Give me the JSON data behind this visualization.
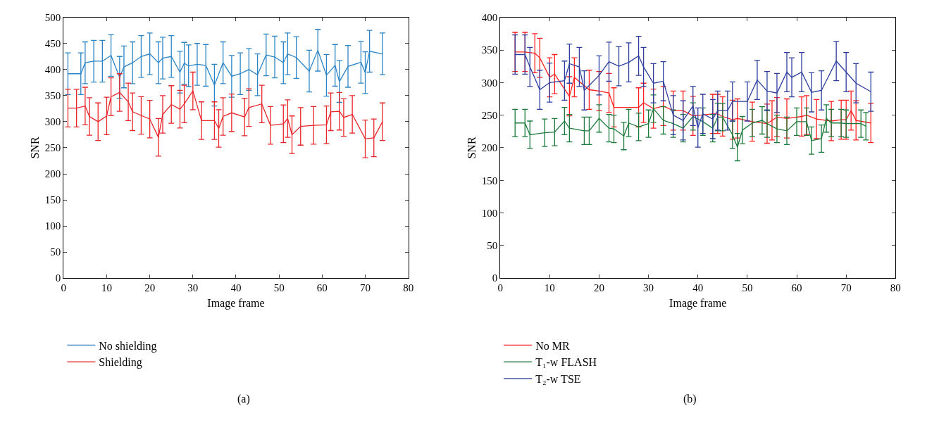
{
  "chart_data": [
    {
      "type": "line",
      "title": "(a)",
      "xlabel": "Image frame",
      "ylabel": "SNR",
      "xlim": [
        0,
        80
      ],
      "xticks": [
        0,
        10,
        20,
        30,
        40,
        50,
        60,
        70,
        80
      ],
      "ylim": [
        0,
        500
      ],
      "yticks": [
        0,
        50,
        100,
        150,
        200,
        250,
        300,
        350,
        400,
        450,
        500
      ],
      "grid": false,
      "legend": "bottom",
      "series": [
        {
          "name": "No shielding",
          "color": "#2a84c6",
          "x": [
            1,
            4,
            5,
            7,
            9,
            11,
            13,
            14,
            16,
            18,
            20,
            22,
            23,
            25,
            27,
            28,
            29,
            31,
            33,
            35,
            37,
            39,
            41,
            43,
            45,
            47,
            49,
            51,
            52,
            54,
            57,
            59,
            61,
            63,
            64,
            66,
            69,
            70,
            71,
            74
          ],
          "values": [
            392,
            392,
            413,
            416,
            416,
            427,
            385,
            405,
            413,
            425,
            430,
            413,
            422,
            425,
            395,
            412,
            407,
            410,
            408,
            370,
            413,
            387,
            392,
            400,
            390,
            428,
            424,
            413,
            430,
            423,
            397,
            437,
            389,
            408,
            377,
            406,
            414,
            394,
            435,
            430
          ],
          "errors": [
            40,
            40,
            40,
            40,
            40,
            40,
            40,
            40,
            40,
            40,
            40,
            40,
            40,
            40,
            40,
            40,
            40,
            40,
            40,
            40,
            40,
            40,
            40,
            40,
            40,
            40,
            40,
            40,
            40,
            40,
            40,
            40,
            40,
            40,
            40,
            40,
            40,
            40,
            40,
            40
          ]
        },
        {
          "name": "Shielding",
          "color": "#e8262a",
          "x": [
            1,
            3,
            5,
            6,
            8,
            10,
            11,
            13,
            15,
            16,
            18,
            20,
            22,
            23,
            25,
            27,
            28,
            30,
            32,
            35,
            36,
            37,
            39,
            42,
            43,
            46,
            48,
            51,
            52,
            53,
            55,
            58,
            61,
            62,
            64,
            65,
            67,
            70,
            72,
            74
          ],
          "values": [
            326,
            326,
            330,
            310,
            300,
            311,
            348,
            356,
            338,
            319,
            312,
            305,
            270,
            314,
            333,
            324,
            334,
            359,
            302,
            302,
            287,
            310,
            317,
            309,
            327,
            334,
            293,
            296,
            306,
            275,
            291,
            293,
            294,
            319,
            320,
            308,
            314,
            267,
            269,
            300
          ],
          "errors": [
            36,
            36,
            36,
            36,
            36,
            36,
            36,
            36,
            36,
            36,
            36,
            36,
            36,
            36,
            36,
            36,
            36,
            36,
            36,
            36,
            36,
            36,
            36,
            36,
            36,
            36,
            36,
            36,
            36,
            36,
            36,
            36,
            36,
            36,
            36,
            36,
            36,
            36,
            36,
            36
          ]
        }
      ]
    },
    {
      "type": "line",
      "title": "(b)",
      "xlabel": "Image frame",
      "ylabel": "SNR",
      "xlim": [
        0,
        80
      ],
      "xticks": [
        0,
        10,
        20,
        30,
        40,
        50,
        60,
        70,
        80
      ],
      "ylim": [
        0,
        400
      ],
      "yticks": [
        0,
        50,
        100,
        150,
        200,
        250,
        300,
        350,
        400
      ],
      "grid": false,
      "legend": "bottom",
      "series": [
        {
          "name": "No MR",
          "color": "#ff2020",
          "x": [
            3,
            5,
            7,
            8,
            10,
            11,
            14,
            15,
            18,
            20,
            22,
            23,
            28,
            29,
            31,
            33,
            35,
            37,
            39,
            43,
            44,
            45,
            47,
            48,
            51,
            54,
            55,
            56,
            58,
            61,
            62,
            64,
            67,
            69,
            70,
            71,
            72,
            75
          ],
          "values": [
            347,
            347,
            345,
            338,
            308,
            313,
            279,
            308,
            289,
            287,
            284,
            262,
            262,
            269,
            260,
            264,
            257,
            257,
            249,
            252,
            252,
            248,
            243,
            245,
            240,
            237,
            242,
            247,
            245,
            248,
            250,
            244,
            241,
            243,
            243,
            257,
            242,
            238
          ],
          "errors": [
            30,
            30,
            30,
            30,
            30,
            30,
            30,
            30,
            30,
            30,
            30,
            30,
            30,
            30,
            30,
            30,
            30,
            30,
            30,
            30,
            30,
            30,
            30,
            30,
            30,
            30,
            30,
            30,
            30,
            30,
            30,
            30,
            30,
            30,
            30,
            30,
            30,
            30
          ]
        },
        {
          "name": "T₁-w FLASH",
          "color": "#1a7a3a",
          "x": [
            3,
            5,
            6,
            9,
            11,
            13,
            14,
            17,
            18,
            20,
            22,
            23,
            25,
            26,
            28,
            30,
            31,
            33,
            35,
            37,
            39,
            41,
            43,
            44,
            45,
            47,
            48,
            49,
            51,
            53,
            54,
            56,
            58,
            60,
            62,
            63,
            65,
            66,
            67,
            69,
            70,
            73,
            74
          ],
          "values": [
            238,
            238,
            220,
            223,
            224,
            241,
            230,
            226,
            226,
            245,
            230,
            229,
            218,
            238,
            232,
            237,
            260,
            242,
            237,
            230,
            248,
            240,
            230,
            247,
            247,
            220,
            201,
            227,
            238,
            242,
            237,
            229,
            226,
            240,
            240,
            211,
            214,
            245,
            238,
            238,
            237,
            237,
            233
          ],
          "errors": [
            21,
            21,
            21,
            21,
            21,
            21,
            21,
            21,
            21,
            21,
            21,
            21,
            21,
            21,
            21,
            21,
            21,
            21,
            21,
            21,
            21,
            21,
            21,
            21,
            21,
            21,
            21,
            21,
            21,
            21,
            21,
            21,
            21,
            21,
            21,
            21,
            21,
            21,
            21,
            21,
            21,
            21,
            21
          ]
        },
        {
          "name": "T₂-w TSE",
          "color": "#2c3e9e",
          "x": [
            3,
            5,
            6,
            8,
            10,
            13,
            14,
            16,
            17,
            20,
            22,
            24,
            26,
            28,
            29,
            31,
            33,
            35,
            37,
            39,
            40,
            41,
            43,
            44,
            46,
            47,
            50,
            52,
            54,
            56,
            58,
            59,
            61,
            63,
            65,
            68,
            70,
            72,
            75
          ],
          "values": [
            343,
            343,
            324,
            289,
            300,
            303,
            329,
            324,
            288,
            311,
            332,
            325,
            331,
            341,
            324,
            299,
            302,
            250,
            242,
            264,
            231,
            252,
            244,
            257,
            257,
            271,
            271,
            304,
            287,
            284,
            316,
            308,
            316,
            285,
            288,
            333,
            316,
            299,
            286
          ],
          "errors": [
            30,
            30,
            30,
            30,
            30,
            30,
            30,
            30,
            30,
            30,
            30,
            30,
            30,
            30,
            30,
            30,
            30,
            30,
            30,
            30,
            30,
            30,
            30,
            30,
            30,
            30,
            30,
            30,
            30,
            30,
            30,
            30,
            30,
            30,
            30,
            30,
            30,
            30,
            30
          ]
        }
      ]
    }
  ]
}
